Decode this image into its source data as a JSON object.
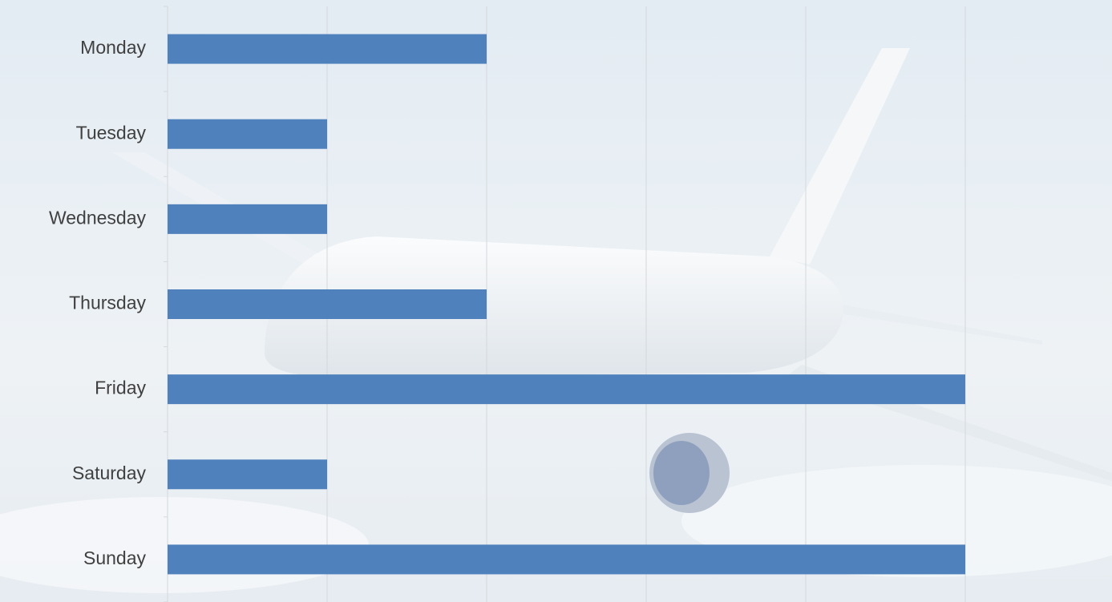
{
  "chart_data": {
    "type": "bar",
    "orientation": "horizontal",
    "categories": [
      "Monday",
      "Tuesday",
      "Wednesday",
      "Thursday",
      "Friday",
      "Saturday",
      "Sunday"
    ],
    "values": [
      2,
      1,
      1,
      2,
      5,
      1,
      5
    ],
    "color": "#4f81bd",
    "xlim": [
      0,
      5
    ],
    "xticks": [
      0,
      1,
      2,
      3,
      4,
      5
    ],
    "grid": true
  }
}
